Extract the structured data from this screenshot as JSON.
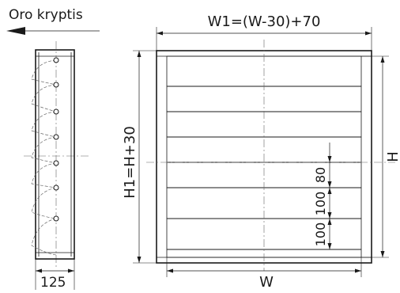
{
  "labels": {
    "airflow_direction": "Oro kryptis",
    "overall_width": "W1=(W-30)+70",
    "overall_height": "H1=H+30",
    "nominal_height": "H",
    "nominal_width": "W",
    "depth": "125",
    "pitch_top": "80",
    "pitch_middle": "100",
    "pitch_bottom": "100"
  }
}
